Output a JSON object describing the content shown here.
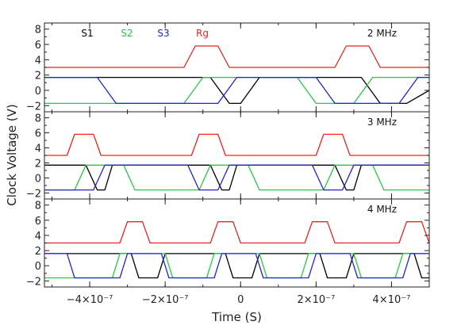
{
  "chart_data": {
    "type": "line",
    "xlabel": "Time (S)",
    "ylabel": "Clock Voltage (V)",
    "xlim": [
      -5.2e-07,
      5e-07
    ],
    "ylim": [
      -2.8,
      8.8
    ],
    "x_ticks": [
      -4e-07,
      -2e-07,
      0,
      2e-07,
      4e-07
    ],
    "x_tick_labels": [
      "−4×10⁻⁷",
      "−2×10⁻⁷",
      "0",
      "2×10⁻⁷",
      "4×10⁻⁷"
    ],
    "y_ticks": [
      -2,
      0,
      2,
      4,
      6,
      8
    ],
    "y_tick_labels": [
      "−2",
      "0",
      "2",
      "4",
      "6",
      "8"
    ],
    "legend": [
      {
        "name": "S1",
        "color": "#000000"
      },
      {
        "name": "S2",
        "color": "#22cc44"
      },
      {
        "name": "S3",
        "color": "#2222dd"
      },
      {
        "name": "Rg",
        "color": "#ee2222"
      }
    ],
    "panels": [
      {
        "label": "2 MHz",
        "series": [
          {
            "name": "Rg",
            "color": "#ee2222",
            "points": [
              [
                -5.2e-07,
                3.0
              ],
              [
                -1.5e-07,
                3.0
              ],
              [
                -1.2e-07,
                5.8
              ],
              [
                -6e-08,
                5.8
              ],
              [
                -3e-08,
                3.0
              ],
              [
                2.5e-07,
                3.0
              ],
              [
                2.8e-07,
                5.8
              ],
              [
                3.4e-07,
                5.8
              ],
              [
                3.7e-07,
                3.0
              ],
              [
                5e-07,
                3.0
              ]
            ]
          },
          {
            "name": "S1",
            "color": "#000000",
            "points": [
              [
                -5.2e-07,
                1.7
              ],
              [
                -8e-08,
                1.7
              ],
              [
                -3e-08,
                -1.7
              ],
              [
                0.0,
                -1.7
              ],
              [
                5e-08,
                1.7
              ],
              [
                3.2e-07,
                1.7
              ],
              [
                3.7e-07,
                -1.7
              ],
              [
                4.4e-07,
                -1.7
              ],
              [
                5e-07,
                0.0
              ]
            ]
          },
          {
            "name": "S2",
            "color": "#22cc44",
            "points": [
              [
                -5.2e-07,
                -1.7
              ],
              [
                -1.5e-07,
                -1.7
              ],
              [
                -1e-07,
                1.7
              ],
              [
                1.5e-07,
                1.7
              ],
              [
                2e-07,
                -1.7
              ],
              [
                3e-07,
                -1.7
              ],
              [
                3.5e-07,
                1.7
              ],
              [
                5e-07,
                1.7
              ]
            ]
          },
          {
            "name": "S3",
            "color": "#2222dd",
            "points": [
              [
                -5.2e-07,
                1.7
              ],
              [
                -3.8e-07,
                1.7
              ],
              [
                -3.3e-07,
                -1.7
              ],
              [
                -6e-08,
                -1.7
              ],
              [
                -1e-08,
                1.7
              ],
              [
                2e-07,
                1.7
              ],
              [
                2.5e-07,
                -1.7
              ],
              [
                4.2e-07,
                -1.7
              ],
              [
                4.7e-07,
                1.7
              ],
              [
                5e-07,
                1.7
              ]
            ]
          }
        ]
      },
      {
        "label": "3 MHz",
        "series": [
          {
            "name": "Rg",
            "color": "#ee2222",
            "points": [
              [
                -5.2e-07,
                3.0
              ],
              [
                -4.6e-07,
                3.0
              ],
              [
                -4.4e-07,
                5.8
              ],
              [
                -3.9e-07,
                5.8
              ],
              [
                -3.7e-07,
                3.0
              ],
              [
                -1.3e-07,
                3.0
              ],
              [
                -1.1e-07,
                5.8
              ],
              [
                -6e-08,
                5.8
              ],
              [
                -4e-08,
                3.0
              ],
              [
                2e-07,
                3.0
              ],
              [
                2.2e-07,
                5.8
              ],
              [
                2.7e-07,
                5.8
              ],
              [
                2.9e-07,
                3.0
              ],
              [
                5e-07,
                3.0
              ]
            ]
          },
          {
            "name": "S1",
            "color": "#000000",
            "points": [
              [
                -5.2e-07,
                1.7
              ],
              [
                -4.1e-07,
                1.7
              ],
              [
                -3.8e-07,
                -1.6
              ],
              [
                -3.6e-07,
                -1.6
              ],
              [
                -3.4e-07,
                1.7
              ],
              [
                -8e-08,
                1.7
              ],
              [
                -5e-08,
                -1.6
              ],
              [
                -3e-08,
                -1.6
              ],
              [
                -1e-08,
                1.7
              ],
              [
                2.5e-07,
                1.7
              ],
              [
                2.8e-07,
                -1.6
              ],
              [
                3e-07,
                -1.6
              ],
              [
                3.2e-07,
                1.7
              ],
              [
                5e-07,
                1.7
              ]
            ]
          },
          {
            "name": "S2",
            "color": "#22cc44",
            "points": [
              [
                -5.2e-07,
                -1.6
              ],
              [
                -4.4e-07,
                -1.6
              ],
              [
                -4.1e-07,
                1.7
              ],
              [
                -3.1e-07,
                1.7
              ],
              [
                -2.8e-07,
                -1.6
              ],
              [
                -1.1e-07,
                -1.6
              ],
              [
                -8e-08,
                1.7
              ],
              [
                2e-08,
                1.7
              ],
              [
                5e-08,
                -1.6
              ],
              [
                2.2e-07,
                -1.6
              ],
              [
                2.5e-07,
                1.7
              ],
              [
                3.5e-07,
                1.7
              ],
              [
                3.8e-07,
                -1.6
              ],
              [
                5e-07,
                -1.6
              ]
            ]
          },
          {
            "name": "S3",
            "color": "#2222dd",
            "points": [
              [
                -5.2e-07,
                -1.6
              ],
              [
                -3.9e-07,
                -1.6
              ],
              [
                -3.6e-07,
                1.7
              ],
              [
                -1.4e-07,
                1.7
              ],
              [
                -1.1e-07,
                -1.6
              ],
              [
                -6e-08,
                -1.6
              ],
              [
                -3e-08,
                1.7
              ],
              [
                1.9e-07,
                1.7
              ],
              [
                2.2e-07,
                -1.6
              ],
              [
                2.7e-07,
                -1.6
              ],
              [
                3e-07,
                1.7
              ],
              [
                5e-07,
                1.7
              ]
            ]
          }
        ]
      },
      {
        "label": "4 MHz",
        "series": [
          {
            "name": "Rg",
            "color": "#ee2222",
            "points": [
              [
                -5.2e-07,
                3.0
              ],
              [
                -3.2e-07,
                3.0
              ],
              [
                -3e-07,
                5.8
              ],
              [
                -2.6e-07,
                5.8
              ],
              [
                -2.4e-07,
                3.0
              ],
              [
                -8e-08,
                3.0
              ],
              [
                -6e-08,
                5.8
              ],
              [
                -2e-08,
                5.8
              ],
              [
                0.0,
                3.0
              ],
              [
                1.7e-07,
                3.0
              ],
              [
                1.9e-07,
                5.8
              ],
              [
                2.3e-07,
                5.8
              ],
              [
                2.5e-07,
                3.0
              ],
              [
                4.2e-07,
                3.0
              ],
              [
                4.4e-07,
                5.8
              ],
              [
                4.8e-07,
                5.8
              ],
              [
                5e-07,
                3.0
              ]
            ]
          },
          {
            "name": "S1",
            "color": "#000000",
            "points": [
              [
                -5.2e-07,
                1.6
              ],
              [
                -2.9e-07,
                1.6
              ],
              [
                -2.7e-07,
                -1.6
              ],
              [
                -2.2e-07,
                -1.6
              ],
              [
                -2e-07,
                1.6
              ],
              [
                -4e-08,
                1.6
              ],
              [
                -2e-08,
                -1.6
              ],
              [
                3e-08,
                -1.6
              ],
              [
                5e-08,
                1.6
              ],
              [
                2.1e-07,
                1.6
              ],
              [
                2.3e-07,
                -1.6
              ],
              [
                2.8e-07,
                -1.6
              ],
              [
                3e-07,
                1.6
              ],
              [
                4.6e-07,
                1.6
              ],
              [
                4.8e-07,
                -1.6
              ],
              [
                5e-07,
                -1.6
              ]
            ]
          },
          {
            "name": "S2",
            "color": "#22cc44",
            "points": [
              [
                -5.2e-07,
                -1.6
              ],
              [
                -3.4e-07,
                -1.6
              ],
              [
                -3.2e-07,
                1.6
              ],
              [
                -2e-07,
                1.6
              ],
              [
                -1.8e-07,
                -1.6
              ],
              [
                -9e-08,
                -1.6
              ],
              [
                -7e-08,
                1.6
              ],
              [
                5e-08,
                1.6
              ],
              [
                7e-08,
                -1.6
              ],
              [
                1.6e-07,
                -1.6
              ],
              [
                1.8e-07,
                1.6
              ],
              [
                3e-07,
                1.6
              ],
              [
                3.2e-07,
                -1.6
              ],
              [
                4.1e-07,
                -1.6
              ],
              [
                4.3e-07,
                1.6
              ],
              [
                5e-07,
                1.6
              ]
            ]
          },
          {
            "name": "S3",
            "color": "#2222dd",
            "points": [
              [
                -5.2e-07,
                1.6
              ],
              [
                -4.6e-07,
                1.6
              ],
              [
                -4.4e-07,
                -1.6
              ],
              [
                -3.2e-07,
                -1.6
              ],
              [
                -3e-07,
                1.6
              ],
              [
                -2.1e-07,
                1.6
              ],
              [
                -1.9e-07,
                -1.6
              ],
              [
                -7e-08,
                -1.6
              ],
              [
                -5e-08,
                1.6
              ],
              [
                4e-08,
                1.6
              ],
              [
                6e-08,
                -1.6
              ],
              [
                1.8e-07,
                -1.6
              ],
              [
                2e-07,
                1.6
              ],
              [
                2.9e-07,
                1.6
              ],
              [
                3.1e-07,
                -1.6
              ],
              [
                4.3e-07,
                -1.6
              ],
              [
                4.5e-07,
                1.6
              ],
              [
                5e-07,
                1.6
              ]
            ]
          }
        ]
      }
    ]
  }
}
